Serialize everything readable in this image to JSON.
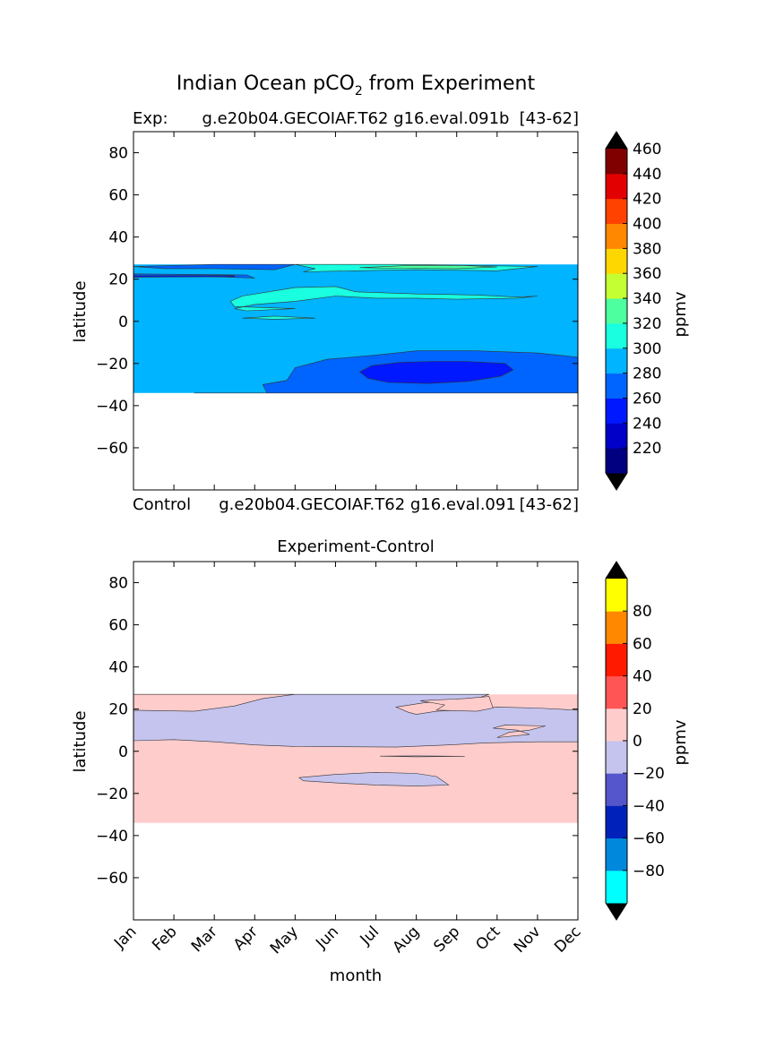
{
  "suptitle": {
    "main": "Indian Ocean pCO",
    "sub": "2",
    "rest": " from Experiment"
  },
  "panel1": {
    "left_label": "Exp:",
    "center_label": "g.e20b04.GECOIAF.T62 g16.eval.091b",
    "right_label": "[43-62]",
    "ylabel": "latitude",
    "below_left": "Control",
    "below_center": "g.e20b04.GECOIAF.T62 g16.eval.091",
    "below_right": "[43-62]"
  },
  "panel2": {
    "title": "Experiment-Control",
    "ylabel": "latitude",
    "xlabel": "month"
  },
  "colorbar1": {
    "label": "ppmv",
    "levels": [
      200,
      220,
      240,
      260,
      280,
      300,
      320,
      340,
      360,
      380,
      400,
      420,
      440,
      460,
      480
    ],
    "colors": [
      "#000080",
      "#0000c8",
      "#0018ff",
      "#0064ff",
      "#00b4ff",
      "#19ffdf",
      "#4dff9f",
      "#c4ff33",
      "#ffd700",
      "#ff8800",
      "#ff4200",
      "#e20000",
      "#800000"
    ],
    "tick_labels": [
      "220",
      "240",
      "260",
      "280",
      "300",
      "320",
      "340",
      "360",
      "380",
      "400",
      "420",
      "440",
      "460"
    ],
    "extend_color": "#000000"
  },
  "colorbar2": {
    "label": "ppmv",
    "levels": [
      -100,
      -80,
      -60,
      -40,
      -20,
      0,
      20,
      40,
      60,
      80,
      100
    ],
    "colors": [
      "#00ffff",
      "#0088dd",
      "#0022bb",
      "#5555cc",
      "#c4c4ee",
      "#ffcccc",
      "#ff5555",
      "#ff1a00",
      "#ff8800",
      "#ffff00"
    ],
    "tick_labels": [
      "-80",
      "-60",
      "-40",
      "-20",
      "0",
      "20",
      "40",
      "60",
      "80"
    ],
    "extend_color": "#000000"
  },
  "chart_data": [
    {
      "type": "heatmap",
      "title": "Exp: g.e20b04.GECOIAF.T62 g16.eval.091b [43-62]",
      "xlabel": "",
      "ylabel": "latitude",
      "x_categories": [
        "Jan",
        "Feb",
        "Mar",
        "Apr",
        "May",
        "Jun",
        "Jul",
        "Aug",
        "Sep",
        "Oct",
        "Nov",
        "Dec"
      ],
      "xlim": [
        1,
        12
      ],
      "ylim": [
        -80,
        90
      ],
      "yticks": [
        80,
        60,
        40,
        20,
        0,
        -20,
        -40,
        -60
      ],
      "data_lat_range": [
        -34,
        27
      ],
      "regions": [
        {
          "value_range": [
            280,
            300
          ],
          "points": [
            [
              1,
              27
            ],
            [
              12,
              27
            ],
            [
              12,
              -34
            ],
            [
              1,
              -34
            ]
          ]
        },
        {
          "value_range": [
            260,
            280
          ],
          "points": [
            [
              2.5,
              -34
            ],
            [
              4.3,
              -34
            ],
            [
              4.2,
              -30
            ],
            [
              4.8,
              -28
            ],
            [
              5,
              -22
            ],
            [
              5.8,
              -18
            ],
            [
              7,
              -16
            ],
            [
              8,
              -14
            ],
            [
              9.5,
              -14
            ],
            [
              11,
              -15
            ],
            [
              12,
              -17
            ],
            [
              12,
              -34
            ]
          ]
        },
        {
          "value_range": [
            240,
            260
          ],
          "points": [
            [
              6.6,
              -24
            ],
            [
              6.9,
              -21
            ],
            [
              7.6,
              -19.5
            ],
            [
              8.4,
              -19
            ],
            [
              9.2,
              -19
            ],
            [
              10.2,
              -20
            ],
            [
              10.4,
              -23
            ],
            [
              10.1,
              -26
            ],
            [
              9.3,
              -28.5
            ],
            [
              8.3,
              -29.5
            ],
            [
              7.3,
              -29
            ],
            [
              6.8,
              -27
            ]
          ]
        },
        {
          "value_range": [
            300,
            320
          ],
          "points": [
            [
              3.7,
              12
            ],
            [
              5,
              16
            ],
            [
              6,
              16.5
            ],
            [
              6.5,
              14
            ],
            [
              8,
              13
            ],
            [
              9.5,
              12.5
            ],
            [
              10.5,
              11.5
            ],
            [
              11,
              12
            ],
            [
              10.5,
              11
            ],
            [
              9,
              10.5
            ],
            [
              8,
              11
            ],
            [
              7,
              11
            ],
            [
              6,
              12
            ],
            [
              5,
              9.5
            ],
            [
              4,
              8
            ],
            [
              3.5,
              6
            ],
            [
              3.8,
              5
            ],
            [
              5,
              6
            ],
            [
              3.5,
              7
            ],
            [
              3.4,
              9.5
            ]
          ]
        },
        {
          "value_range": [
            300,
            320
          ],
          "points": [
            [
              3.7,
              1.5
            ],
            [
              4.5,
              2.5
            ],
            [
              5.5,
              1.5
            ],
            [
              4.5,
              1
            ]
          ]
        },
        {
          "value_range": [
            300,
            320
          ],
          "points": [
            [
              5,
              27
            ],
            [
              7.5,
              27
            ],
            [
              9.5,
              26.5
            ],
            [
              11,
              26
            ],
            [
              10,
              24
            ],
            [
              8,
              24.5
            ],
            [
              6.5,
              24
            ],
            [
              5.2,
              23.5
            ],
            [
              5.5,
              25
            ]
          ]
        },
        {
          "value_range": [
            320,
            340
          ],
          "points": [
            [
              6.6,
              25.5
            ],
            [
              7.8,
              26.5
            ],
            [
              9.2,
              26.5
            ],
            [
              10,
              25.8
            ],
            [
              9,
              25
            ],
            [
              7.5,
              25.2
            ]
          ]
        },
        {
          "value_range": [
            260,
            280
          ],
          "points": [
            [
              1,
              21
            ],
            [
              2.5,
              21.5
            ],
            [
              4,
              20.5
            ],
            [
              3.8,
              22
            ],
            [
              1,
              22.5
            ]
          ]
        },
        {
          "value_range": [
            260,
            280
          ],
          "points": [
            [
              1,
              26
            ],
            [
              3,
              27
            ],
            [
              5,
              27
            ],
            [
              4.5,
              24.5
            ],
            [
              3,
              25
            ],
            [
              1.8,
              25
            ]
          ]
        },
        {
          "value_range": [
            240,
            260
          ],
          "points": [
            [
              1,
              21.6
            ],
            [
              3.5,
              21.8
            ],
            [
              3.5,
              21.2
            ],
            [
              1,
              21.0
            ]
          ]
        }
      ]
    },
    {
      "type": "heatmap",
      "title": "Experiment-Control",
      "xlabel": "month",
      "ylabel": "latitude",
      "x_categories": [
        "Jan",
        "Feb",
        "Mar",
        "Apr",
        "May",
        "Jun",
        "Jul",
        "Aug",
        "Sep",
        "Oct",
        "Nov",
        "Dec"
      ],
      "xlim": [
        1,
        12
      ],
      "ylim": [
        -80,
        90
      ],
      "yticks": [
        80,
        60,
        40,
        20,
        0,
        -20,
        -40,
        -60
      ],
      "data_lat_range": [
        -34,
        27
      ],
      "regions": [
        {
          "value_range": [
            0,
            20
          ],
          "points": [
            [
              1,
              27
            ],
            [
              12,
              27
            ],
            [
              12,
              -34
            ],
            [
              1,
              -34
            ]
          ]
        },
        {
          "value_range": [
            -20,
            0
          ],
          "points": [
            [
              1,
              27
            ],
            [
              4.6,
              27
            ],
            [
              5,
              27
            ],
            [
              5,
              27
            ],
            [
              4.2,
              25
            ],
            [
              3.5,
              21.5
            ],
            [
              2.5,
              19
            ],
            [
              1,
              19.5
            ],
            [
              1,
              5
            ],
            [
              2,
              5.5
            ],
            [
              3,
              4.5
            ],
            [
              4,
              3
            ],
            [
              5,
              2.3
            ],
            [
              7.5,
              2
            ],
            [
              8.8,
              3
            ],
            [
              9.7,
              4
            ],
            [
              11,
              4.5
            ],
            [
              12,
              4.5
            ],
            [
              12,
              19.5
            ],
            [
              11,
              20.5
            ],
            [
              10,
              21
            ],
            [
              9.5,
              20
            ],
            [
              8.5,
              19
            ],
            [
              8,
              17.5
            ],
            [
              7.8,
              18.5
            ],
            [
              7.5,
              21
            ],
            [
              8.2,
              23
            ],
            [
              9.5,
              25
            ],
            [
              9.8,
              27
            ]
          ]
        },
        {
          "value_range": [
            0,
            20
          ],
          "points": [
            [
              8.1,
              24
            ],
            [
              8.7,
              22
            ],
            [
              8.5,
              19.5
            ],
            [
              9.5,
              19
            ],
            [
              9.9,
              20.5
            ],
            [
              9.8,
              26
            ],
            [
              9.2,
              25
            ]
          ]
        },
        {
          "value_range": [
            0,
            20
          ],
          "points": [
            [
              9.9,
              11
            ],
            [
              10.2,
              12.5
            ],
            [
              11.2,
              12
            ],
            [
              10.8,
              10
            ],
            [
              10.3,
              9
            ],
            [
              10,
              6.5
            ],
            [
              10.8,
              8
            ],
            [
              10.5,
              10
            ]
          ]
        },
        {
          "value_range": [
            -20,
            0
          ],
          "points": [
            [
              5.1,
              -12.5
            ],
            [
              6,
              -11
            ],
            [
              7,
              -10
            ],
            [
              8,
              -10.5
            ],
            [
              8.5,
              -12
            ],
            [
              8.8,
              -16
            ],
            [
              8,
              -16.5
            ],
            [
              7,
              -16
            ],
            [
              6,
              -15
            ],
            [
              5.2,
              -14
            ]
          ]
        },
        {
          "value_range": [
            -20,
            0
          ],
          "points": [
            [
              7.1,
              -2.3
            ],
            [
              8,
              -2.2
            ],
            [
              9.2,
              -2.4
            ],
            [
              8,
              -2.6
            ]
          ]
        }
      ]
    }
  ]
}
